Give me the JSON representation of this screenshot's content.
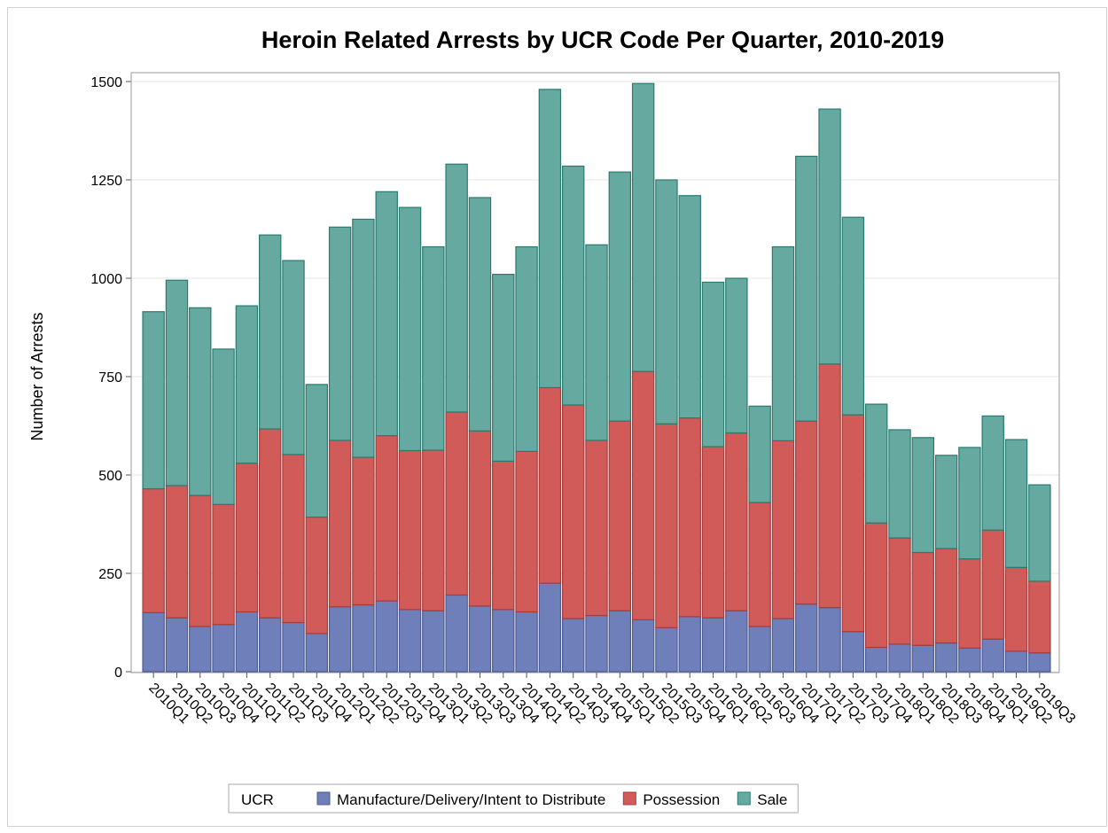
{
  "chart_data": {
    "type": "stacked-bar",
    "title": "Heroin Related Arrests by UCR Code Per Quarter, 2010-2019",
    "y_label": "Number of Arrests",
    "legend_title": "UCR",
    "categories": [
      "2010Q1",
      "2010Q2",
      "2010Q3",
      "2010Q4",
      "2011Q1",
      "2011Q2",
      "2011Q3",
      "2011Q4",
      "2012Q1",
      "2012Q2",
      "2012Q3",
      "2012Q4",
      "2013Q1",
      "2013Q2",
      "2013Q3",
      "2013Q4",
      "2014Q1",
      "2014Q2",
      "2014Q3",
      "2014Q4",
      "2015Q1",
      "2015Q2",
      "2015Q3",
      "2015Q4",
      "2016Q1",
      "2016Q2",
      "2016Q3",
      "2016Q4",
      "2017Q1",
      "2017Q2",
      "2017Q3",
      "2017Q4",
      "2018Q1",
      "2018Q2",
      "2018Q3",
      "2018Q4",
      "2019Q1",
      "2019Q2",
      "2019Q3"
    ],
    "series": [
      {
        "name": "Manufacture/Delivery/Intent to Distribute",
        "color": "#6e7fb9",
        "stroke": "#4d5b94",
        "values": [
          150,
          137,
          115,
          120,
          152,
          137,
          125,
          97,
          165,
          170,
          180,
          158,
          155,
          195,
          167,
          158,
          152,
          225,
          135,
          143,
          155,
          132,
          112,
          140,
          137,
          155,
          115,
          135,
          172,
          163,
          102,
          62,
          70,
          67,
          73,
          60,
          83,
          52,
          48
        ]
      },
      {
        "name": "Possession",
        "color": "#d15b58",
        "stroke": "#a83c3a",
        "values": [
          315,
          336,
          333,
          305,
          378,
          480,
          427,
          296,
          423,
          375,
          420,
          404,
          408,
          465,
          445,
          377,
          408,
          497,
          543,
          445,
          482,
          631,
          518,
          505,
          435,
          452,
          315,
          452,
          465,
          619,
          551,
          316,
          270,
          236,
          240,
          227,
          277,
          213,
          182
        ]
      },
      {
        "name": "Sale",
        "color": "#66a9a0",
        "stroke": "#2a7a70",
        "values": [
          450,
          522,
          477,
          395,
          400,
          493,
          493,
          337,
          542,
          605,
          620,
          618,
          517,
          630,
          593,
          475,
          520,
          758,
          607,
          497,
          633,
          732,
          620,
          565,
          418,
          393,
          245,
          493,
          673,
          648,
          502,
          302,
          275,
          292,
          237,
          283,
          290,
          325,
          245
        ]
      }
    ],
    "ylim": [
      0,
      1500
    ],
    "yticks": [
      0,
      250,
      500,
      750,
      1000,
      1250,
      1500
    ],
    "grid": true
  }
}
